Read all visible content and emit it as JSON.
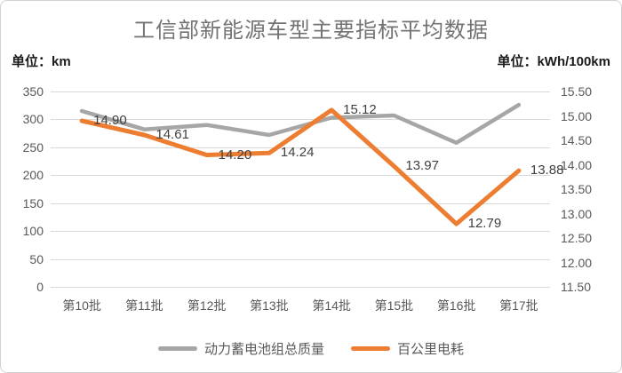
{
  "chart": {
    "title": "工信部新能源车型主要指标平均数据",
    "left_unit": "单位：km",
    "right_unit": "单位：kWh/100km"
  },
  "chart_data": {
    "type": "line",
    "title": "工信部新能源车型主要指标平均数据",
    "categories": [
      "第10批",
      "第11批",
      "第12批",
      "第13批",
      "第14批",
      "第15批",
      "第16批",
      "第17批"
    ],
    "series": [
      {
        "name": "动力蓄电池组总质量",
        "axis": "left",
        "color": "#a6a6a6",
        "stroke_width": 4.5,
        "show_labels": false,
        "values": [
          315,
          282,
          290,
          272,
          303,
          307,
          258,
          326
        ]
      },
      {
        "name": "百公里电耗",
        "axis": "right",
        "color": "#ed7d31",
        "stroke_width": 5,
        "show_labels": true,
        "values": [
          14.9,
          14.61,
          14.2,
          14.24,
          15.12,
          13.97,
          12.79,
          13.88
        ],
        "value_labels": [
          "14.90",
          "14.61",
          "14.20",
          "14.24",
          "15.12",
          "13.97",
          "12.79",
          "13.88"
        ]
      }
    ],
    "left_axis": {
      "unit": "km",
      "min": 0,
      "max": 350,
      "step": 50,
      "ticks": [
        "350",
        "300",
        "250",
        "200",
        "150",
        "100",
        "50",
        "0"
      ]
    },
    "right_axis": {
      "unit": "kWh/100km",
      "min": 11.5,
      "max": 15.5,
      "step": 0.5,
      "ticks": [
        "15.50",
        "15.00",
        "14.50",
        "14.00",
        "13.50",
        "13.00",
        "12.50",
        "12.00",
        "11.50"
      ]
    },
    "grid": "horizontal, aligned to left axis",
    "legend_position": "bottom",
    "label_color": "#404040",
    "axis_text_color": "#595959",
    "gridline_color": "#d9d9d9"
  }
}
